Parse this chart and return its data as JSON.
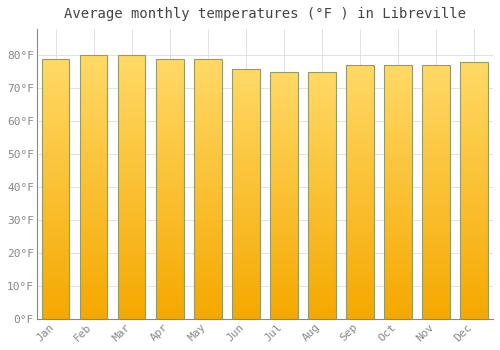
{
  "months": [
    "Jan",
    "Feb",
    "Mar",
    "Apr",
    "May",
    "Jun",
    "Jul",
    "Aug",
    "Sep",
    "Oct",
    "Nov",
    "Dec"
  ],
  "values": [
    79,
    80,
    80,
    79,
    79,
    76,
    75,
    75,
    77,
    77,
    77,
    78
  ],
  "bar_color_bottom": "#F5A800",
  "bar_color_top": "#FFD966",
  "bar_edge_color": "#999966",
  "title": "Average monthly temperatures (°F ) in Libreville",
  "ylim": [
    0,
    88
  ],
  "yticks": [
    0,
    10,
    20,
    30,
    40,
    50,
    60,
    70,
    80
  ],
  "ytick_labels": [
    "0°F",
    "10°F",
    "20°F",
    "30°F",
    "40°F",
    "50°F",
    "60°F",
    "70°F",
    "80°F"
  ],
  "background_color": "#FFFFFF",
  "grid_color": "#DDDDDD",
  "title_fontsize": 10,
  "tick_fontsize": 8,
  "tick_color": "#888888",
  "font_family": "monospace",
  "bar_width": 0.72
}
